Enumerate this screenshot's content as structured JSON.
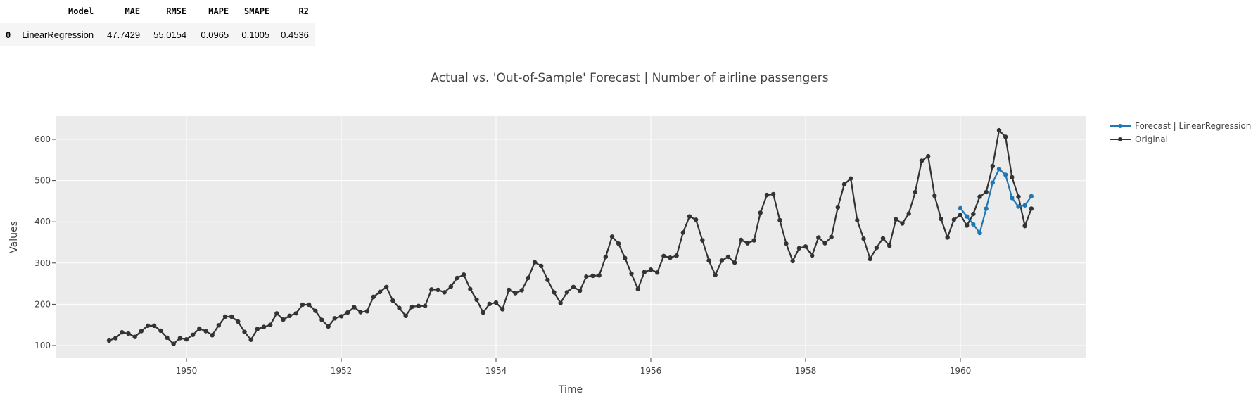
{
  "table": {
    "columns": [
      "",
      "Model",
      "MAE",
      "RMSE",
      "MAPE",
      "SMAPE",
      "R2"
    ],
    "rows": [
      [
        "0",
        "LinearRegression",
        "47.7429",
        "55.0154",
        "0.0965",
        "0.1005",
        "0.4536"
      ]
    ]
  },
  "chart_data": {
    "type": "line",
    "title": "Actual vs. 'Out-of-Sample' Forecast | Number of airline passengers",
    "xlabel": "Time",
    "ylabel": "Values",
    "xlim": [
      1948.2,
      1961.6
    ],
    "ylim": [
      68,
      655
    ],
    "xticks": [
      1950,
      1952,
      1954,
      1956,
      1958,
      1960
    ],
    "yticks": [
      100,
      200,
      300,
      400,
      500,
      600
    ],
    "grid": true,
    "legend_position": "top-right (outside)",
    "x_start": 1949,
    "x_step_months": 1,
    "series": [
      {
        "name": "Forecast | LinearRegression",
        "color": "#1f77b4",
        "start": 1960,
        "values": [
          433,
          413,
          394,
          373,
          432,
          495,
          528,
          514,
          458,
          437,
          440,
          462
        ]
      },
      {
        "name": "Original",
        "color": "#333333",
        "start": 1949,
        "values": [
          112,
          118,
          132,
          129,
          121,
          135,
          148,
          148,
          136,
          119,
          104,
          118,
          115,
          126,
          141,
          135,
          125,
          149,
          170,
          170,
          158,
          133,
          114,
          140,
          145,
          150,
          178,
          163,
          172,
          178,
          199,
          199,
          184,
          162,
          146,
          166,
          171,
          180,
          193,
          181,
          183,
          218,
          230,
          242,
          209,
          191,
          172,
          194,
          196,
          196,
          236,
          235,
          229,
          243,
          264,
          272,
          237,
          211,
          180,
          201,
          204,
          188,
          235,
          227,
          234,
          264,
          302,
          293,
          259,
          229,
          203,
          229,
          242,
          233,
          267,
          269,
          270,
          315,
          364,
          347,
          312,
          274,
          237,
          278,
          284,
          277,
          317,
          313,
          318,
          374,
          413,
          405,
          355,
          306,
          271,
          306,
          315,
          301,
          356,
          348,
          355,
          422,
          465,
          467,
          404,
          347,
          305,
          336,
          340,
          318,
          362,
          348,
          363,
          435,
          491,
          505,
          404,
          359,
          310,
          337,
          360,
          342,
          406,
          396,
          420,
          472,
          548,
          559,
          463,
          407,
          362,
          405,
          417,
          391,
          419,
          461,
          472,
          535,
          622,
          606,
          508,
          461,
          390,
          432
        ]
      }
    ]
  }
}
